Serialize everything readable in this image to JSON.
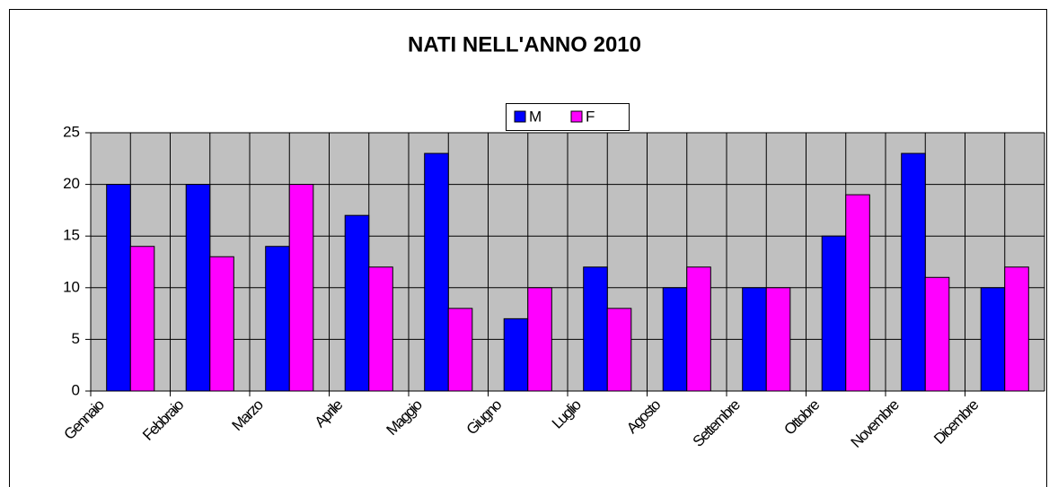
{
  "chart_data": {
    "type": "bar",
    "title": "NATI NELL'ANNO 2010",
    "categories": [
      "Gennaio",
      "Febbraio",
      "Marzo",
      "Aprile",
      "Maggio",
      "Giugno",
      "Luglio",
      "Agosto",
      "Settembre",
      "Ottobre",
      "Novembre",
      "Dicembre"
    ],
    "series": [
      {
        "name": "M",
        "color": "#0000ff",
        "values": [
          20,
          20,
          14,
          17,
          23,
          7,
          12,
          10,
          10,
          15,
          23,
          10
        ]
      },
      {
        "name": "F",
        "color": "#ff00ff",
        "values": [
          14,
          13,
          20,
          12,
          8,
          10,
          8,
          12,
          10,
          19,
          11,
          12
        ]
      }
    ],
    "ylim": [
      0,
      25
    ],
    "yticks": [
      0,
      5,
      10,
      15,
      20,
      25
    ],
    "grid": true,
    "legend": "top"
  }
}
